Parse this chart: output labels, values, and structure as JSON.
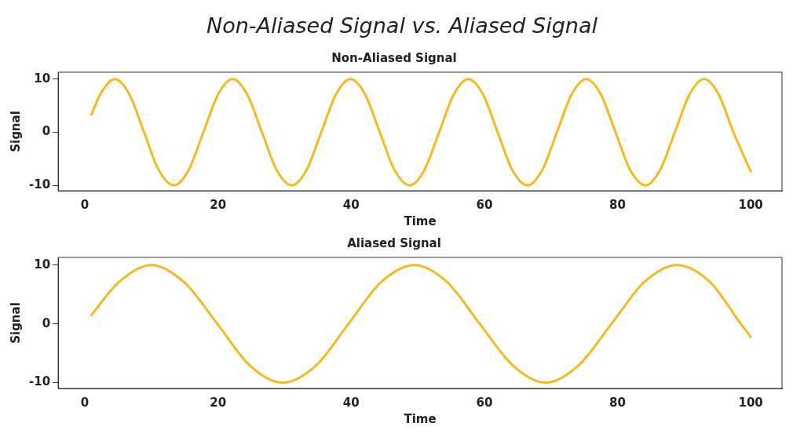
{
  "chart_data": [
    {
      "type": "line",
      "title": "Non-Aliased Signal vs. Aliased Signal",
      "subtitle": "Non-Aliased Signal",
      "xlabel": "Time",
      "ylabel": "Signal",
      "xlim": [
        -4,
        104.7
      ],
      "ylim": [
        -11,
        11.3
      ],
      "xticks": [
        0,
        20,
        40,
        60,
        80,
        100
      ],
      "yticks": [
        -10,
        0,
        10
      ],
      "grid": false,
      "legend": false,
      "marker": "none",
      "line_style": "solid",
      "series": [
        {
          "color": "#f5b921",
          "x": [
            1,
            2.3,
            4.5,
            6.7,
            8.9,
            11.1,
            13.4,
            15.6,
            17.8,
            20.0,
            22.2,
            24.4,
            26.6,
            28.8,
            31.1,
            33.3,
            35.5,
            37.7,
            39.9,
            42.1,
            44.3,
            46.5,
            48.8,
            51.0,
            53.2,
            55.4,
            57.6,
            59.8,
            62.0,
            64.2,
            66.5,
            68.7,
            70.9,
            73.1,
            75.3,
            77.5,
            79.7,
            81.9,
            84.2,
            86.4,
            88.6,
            90.8,
            93.0,
            95.2,
            97.4,
            100
          ],
          "values": [
            3.3,
            7.1,
            10,
            7.1,
            0,
            -7.1,
            -10,
            -7.1,
            0,
            7.1,
            10,
            7.1,
            0,
            -7.1,
            -10,
            -7.1,
            0,
            7.1,
            10,
            7.1,
            0,
            -7.1,
            -10,
            -7.1,
            0,
            7.1,
            10,
            7.1,
            0,
            -7.1,
            -10,
            -7.1,
            0,
            7.1,
            10,
            7.1,
            0,
            -7.1,
            -10,
            -7.1,
            0,
            7.1,
            10,
            7.1,
            0,
            -7.4
          ]
        }
      ]
    },
    {
      "type": "line",
      "title": "Aliased Signal",
      "xlabel": "Time",
      "ylabel": "Signal",
      "xlim": [
        -4,
        104.7
      ],
      "ylim": [
        -11,
        11.3
      ],
      "xticks": [
        0,
        20,
        40,
        60,
        80,
        100
      ],
      "yticks": [
        -10,
        0,
        10
      ],
      "grid": false,
      "legend": false,
      "marker": "none",
      "line_style": "solid",
      "series": [
        {
          "color": "#f5b921",
          "x": [
            1,
            5.1,
            10,
            14.9,
            19.9,
            24.8,
            29.7,
            34.7,
            39.6,
            44.5,
            49.5,
            54.4,
            59.3,
            64.3,
            69.2,
            74.1,
            79.1,
            84.0,
            88.9,
            93.9,
            98.5,
            100
          ],
          "values": [
            1.5,
            7.1,
            10,
            7.1,
            0,
            -7.1,
            -10,
            -7.1,
            0,
            7.1,
            10,
            7.1,
            0,
            -7.1,
            -10,
            -7.1,
            0,
            7.1,
            10,
            7.1,
            0,
            -2.2
          ]
        }
      ]
    }
  ]
}
